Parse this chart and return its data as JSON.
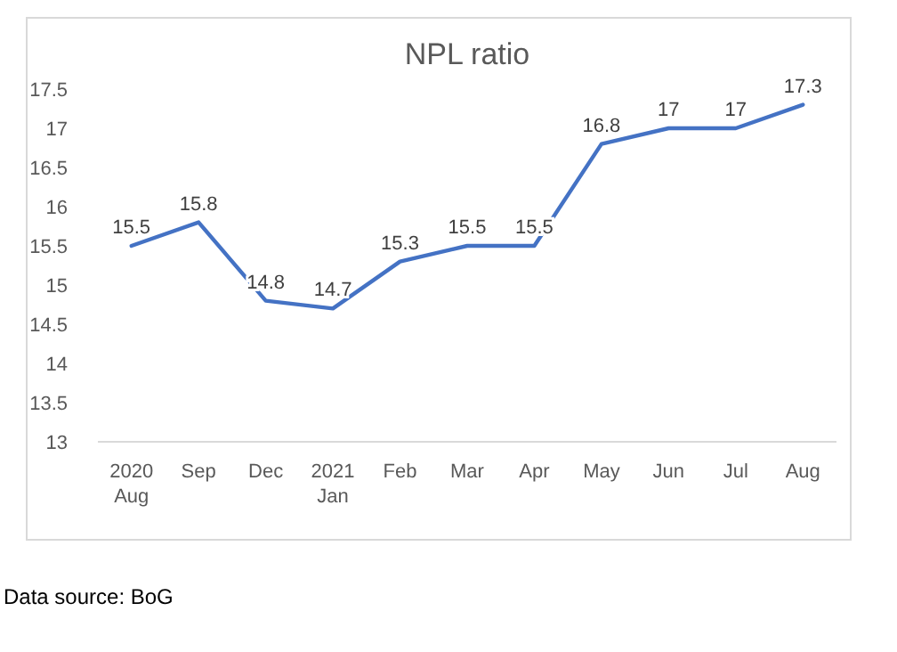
{
  "chart_data": {
    "type": "line",
    "title": "NPL ratio",
    "categories": [
      "2020\nAug",
      "Sep",
      "Dec",
      "2021\nJan",
      "Feb",
      "Mar",
      "Apr",
      "May",
      "Jun",
      "Jul",
      "Aug"
    ],
    "series": [
      {
        "color": "#4472c4",
        "values": [
          15.5,
          15.8,
          14.8,
          14.7,
          15.3,
          15.5,
          15.5,
          16.8,
          17,
          17,
          17.3
        ]
      }
    ],
    "ylim": [
      13,
      17.5
    ],
    "yticks": [
      13,
      13.5,
      14,
      14.5,
      15,
      15.5,
      16,
      16.5,
      17,
      17.5
    ],
    "data_labels": true,
    "grid": false,
    "marker": "none",
    "line_style": "solid",
    "annotations": [
      "Data source: BoG"
    ]
  }
}
